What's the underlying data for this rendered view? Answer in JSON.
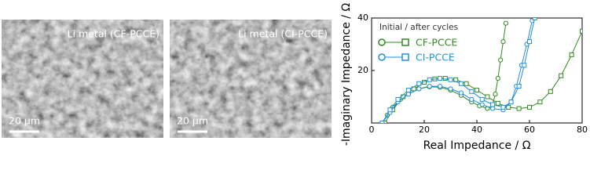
{
  "panels": [
    {
      "label": "Li metal (CF-PCCE)",
      "scale_bar": "20 μm"
    },
    {
      "label": "Li metal (CI-PCCE)",
      "scale_bar": "20 μm"
    }
  ],
  "chart_data": {
    "type": "line",
    "x_label": "Real Impedance / Ω",
    "y_label": "-Imaginary Impedance / Ω",
    "xlim": [
      0,
      80
    ],
    "ylim": [
      0,
      40
    ],
    "xticks": [
      0,
      20,
      40,
      60,
      80
    ],
    "yticks": [
      20,
      40
    ],
    "legend_title": "Initial / after cycles",
    "legend_position": "upper left",
    "series": [
      {
        "name": "CF-PCCE",
        "color": "#2e8b1e",
        "initial": {
          "x": [
            4,
            6,
            8,
            11,
            14,
            18,
            22,
            26,
            30,
            34,
            38,
            41,
            44,
            46,
            47,
            48,
            49,
            50,
            51
          ],
          "values": [
            0,
            3,
            6,
            9,
            11,
            13,
            13.8,
            13.6,
            12.5,
            10.5,
            8,
            6.5,
            5.5,
            7,
            11,
            17,
            24,
            31,
            38
          ]
        },
        "after_cycles": {
          "x": [
            5,
            8,
            12,
            16,
            20,
            24,
            28,
            32,
            36,
            40,
            44,
            48,
            52,
            56,
            60,
            64,
            68,
            72,
            76,
            80
          ],
          "values": [
            0,
            5,
            10,
            13,
            15.5,
            16.8,
            17,
            16.5,
            15,
            12.5,
            10,
            7.5,
            6,
            5.5,
            6,
            8,
            12,
            18,
            26,
            35
          ]
        }
      },
      {
        "name": "CI-PCCE",
        "color": "#1f8fe0",
        "initial": {
          "x": [
            4,
            7,
            10,
            14,
            18,
            22,
            26,
            30,
            34,
            38,
            42,
            46,
            50,
            53,
            55,
            57,
            59,
            61
          ],
          "values": [
            0,
            4,
            8,
            11,
            13,
            14,
            14,
            13,
            11.5,
            9,
            7,
            5.5,
            5,
            8,
            14,
            22,
            30,
            39
          ]
        },
        "after_cycles": {
          "x": [
            4,
            7,
            10,
            14,
            18,
            22,
            26,
            30,
            34,
            38,
            42,
            46,
            50,
            53,
            56,
            58,
            60,
            62
          ],
          "values": [
            0,
            5,
            9,
            12.5,
            15,
            16.5,
            17,
            16.5,
            15,
            12,
            9,
            7,
            6,
            8,
            14,
            22,
            31,
            40
          ]
        }
      }
    ]
  }
}
